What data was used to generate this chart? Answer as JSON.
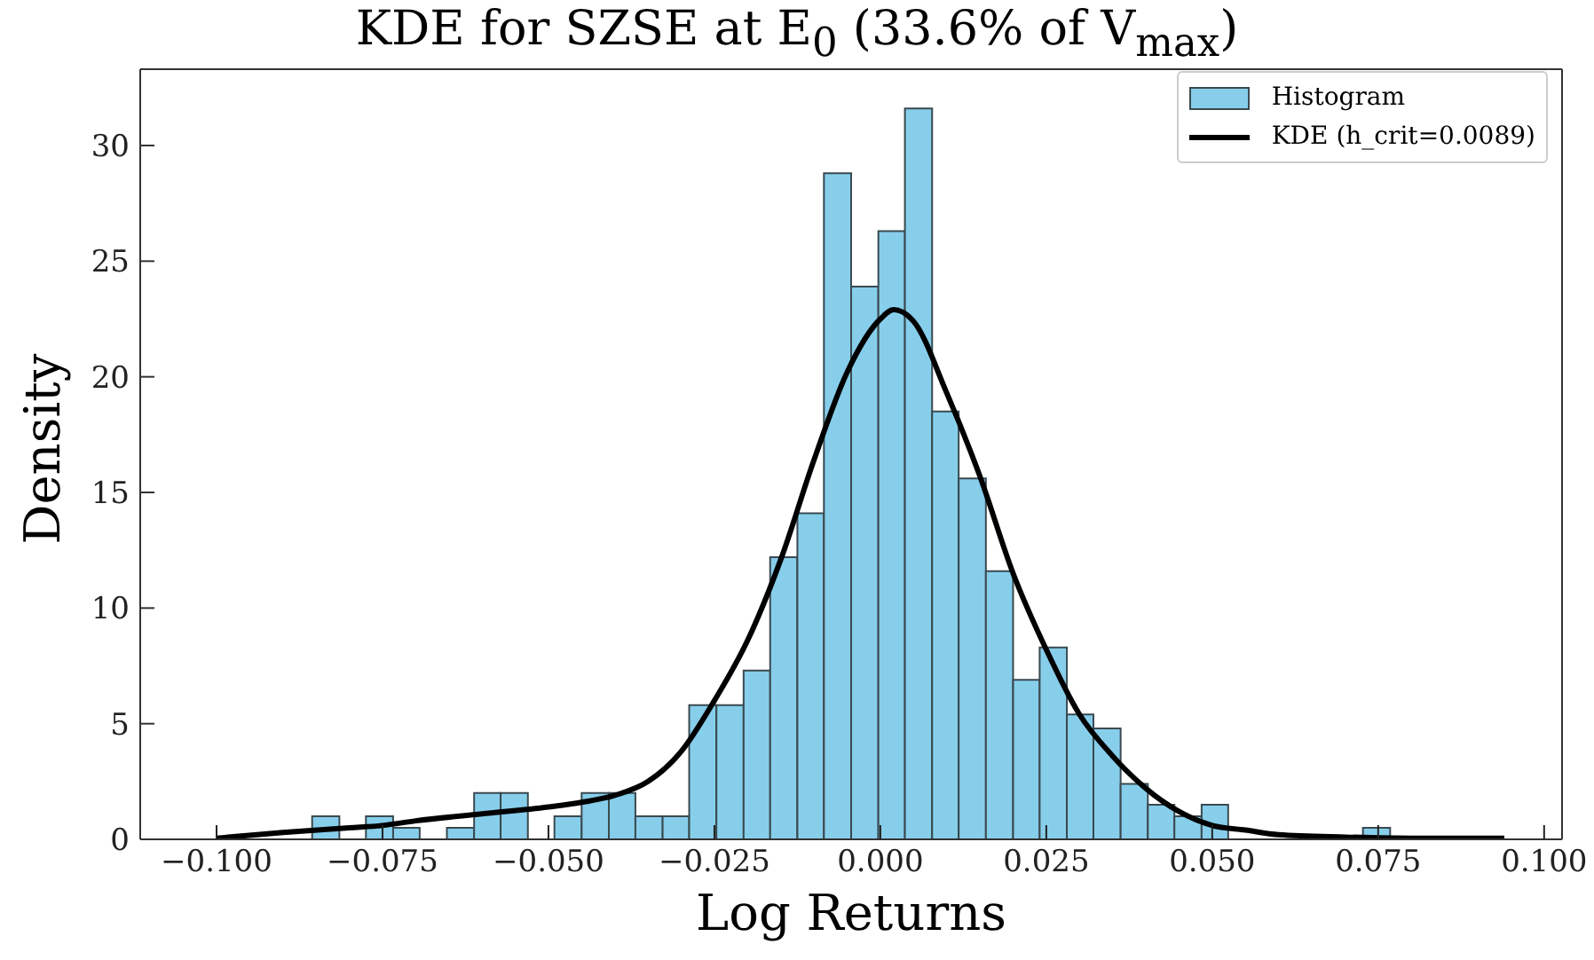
{
  "chart_data": {
    "type": "histogram",
    "title": "KDE for SZSE at E$_{0}$ (33.6% of V$_{max}$)",
    "xlabel": "Log Returns",
    "ylabel": "Density",
    "bins": [
      -0.0856,
      -0.0815,
      -0.0775,
      -0.0734,
      -0.0694,
      -0.0653,
      -0.0612,
      -0.0572,
      -0.0531,
      -0.0491,
      -0.045,
      -0.0409,
      -0.0369,
      -0.0328,
      -0.0288,
      -0.0247,
      -0.0206,
      -0.0166,
      -0.0125,
      -0.0085,
      -0.0044,
      -0.0003,
      0.0037,
      0.0078,
      0.0118,
      0.0159,
      0.02,
      0.024,
      0.0281,
      0.0321,
      0.0362,
      0.0403,
      0.0443,
      0.0484,
      0.0524,
      0.0727,
      0.0768
    ],
    "series": [
      {
        "name": "Histogram",
        "color": "#87ceeb",
        "values": [
          1.0,
          0,
          1.0,
          0.5,
          0,
          0.5,
          2.0,
          2.0,
          0,
          1.0,
          2.0,
          2.0,
          1.0,
          1.0,
          5.8,
          5.8,
          7.3,
          12.2,
          14.1,
          28.8,
          23.9,
          26.3,
          31.6,
          18.5,
          15.6,
          11.6,
          6.9,
          8.3,
          5.4,
          4.8,
          2.4,
          1.5,
          1.0,
          1.5,
          0,
          0.5
        ]
      },
      {
        "name": "KDE (h_crit=0.0089)",
        "type": "line",
        "color": "#000000",
        "x": [
          -0.1,
          -0.09,
          -0.08,
          -0.075,
          -0.07,
          -0.06,
          -0.05,
          -0.045,
          -0.04,
          -0.035,
          -0.03,
          -0.025,
          -0.02,
          -0.015,
          -0.01,
          -0.005,
          0,
          0.002,
          0.005,
          0.01,
          0.015,
          0.02,
          0.025,
          0.03,
          0.035,
          0.04,
          0.045,
          0.05,
          0.055,
          0.06,
          0.07,
          0.08,
          0.094
        ],
        "values": [
          0.05,
          0.3,
          0.5,
          0.6,
          0.8,
          1.1,
          1.4,
          1.6,
          1.9,
          2.5,
          3.8,
          6.0,
          8.6,
          12.1,
          16.4,
          20.2,
          22.5,
          22.9,
          22.4,
          19.3,
          15.7,
          11.5,
          8.2,
          5.4,
          3.6,
          2.2,
          1.2,
          0.6,
          0.4,
          0.2,
          0.1,
          0.05,
          0.05
        ]
      }
    ],
    "xlim": [
      -0.1115,
      0.1027
    ],
    "xticks": [
      {
        "value": -0.1,
        "label": "−0.100"
      },
      {
        "value": -0.075,
        "label": "−0.075"
      },
      {
        "value": -0.05,
        "label": "−0.050"
      },
      {
        "value": -0.025,
        "label": "−0.025"
      },
      {
        "value": 0,
        "label": "0.000"
      },
      {
        "value": 0.025,
        "label": "0.025"
      },
      {
        "value": 0.05,
        "label": "0.050"
      },
      {
        "value": 0.075,
        "label": "0.075"
      },
      {
        "value": 0.1,
        "label": "0.100"
      }
    ],
    "ylim": [
      0,
      33.3
    ],
    "yticks": [
      0,
      5,
      10,
      15,
      20,
      25,
      30
    ],
    "grid": false,
    "legend": "top right",
    "line_style": "solid",
    "marker": "none"
  }
}
